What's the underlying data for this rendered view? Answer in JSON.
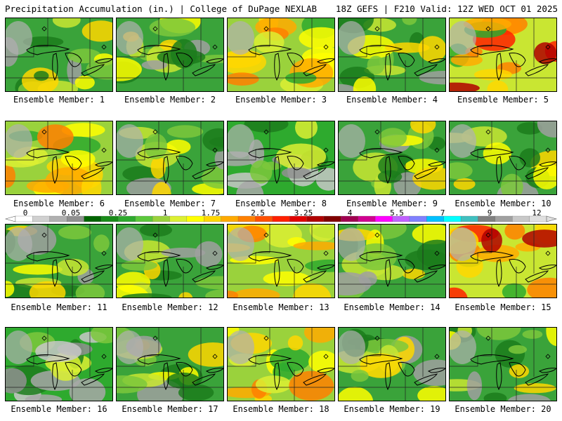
{
  "header": {
    "left": "Precipitation Accumulation (in.) | College of DuPage NEXLAB",
    "right": "18Z GEFS | F210 Valid: 12Z WED OCT 01 2025"
  },
  "members": [
    {
      "label": "Ensemble Member: 1",
      "theme": "green"
    },
    {
      "label": "Ensemble Member: 2",
      "theme": "green"
    },
    {
      "label": "Ensemble Member: 3",
      "theme": "yellow"
    },
    {
      "label": "Ensemble Member: 4",
      "theme": "green"
    },
    {
      "label": "Ensemble Member: 5",
      "theme": "red"
    },
    {
      "label": "Ensemble Member: 6",
      "theme": "yellow"
    },
    {
      "label": "Ensemble Member: 7",
      "theme": "green"
    },
    {
      "label": "Ensemble Member: 8",
      "theme": "gray"
    },
    {
      "label": "Ensemble Member: 9",
      "theme": "green"
    },
    {
      "label": "Ensemble Member: 10",
      "theme": "green"
    },
    {
      "label": "Ensemble Member: 11",
      "theme": "green"
    },
    {
      "label": "Ensemble Member: 12",
      "theme": "green"
    },
    {
      "label": "Ensemble Member: 13",
      "theme": "yellow"
    },
    {
      "label": "Ensemble Member: 14",
      "theme": "green"
    },
    {
      "label": "Ensemble Member: 15",
      "theme": "red"
    },
    {
      "label": "Ensemble Member: 16",
      "theme": "gray"
    },
    {
      "label": "Ensemble Member: 17",
      "theme": "green"
    },
    {
      "label": "Ensemble Member: 18",
      "theme": "yellow"
    },
    {
      "label": "Ensemble Member: 19",
      "theme": "green"
    },
    {
      "label": "Ensemble Member: 20",
      "theme": "green"
    }
  ],
  "legend": {
    "ticks": [
      "0",
      "0.05",
      "0.25",
      "1",
      "1.75",
      "2.5",
      "3.25",
      "4",
      "5.5",
      "7",
      "9",
      "12"
    ],
    "colors": [
      "#ffffff",
      "#d0d0d0",
      "#b0b0b0",
      "#909090",
      "#006400",
      "#1a8c1a",
      "#2eaa2e",
      "#5cc83c",
      "#9ad23c",
      "#dcf032",
      "#ffff00",
      "#ffd700",
      "#ffaa00",
      "#ff8000",
      "#ff5000",
      "#ff2000",
      "#e00000",
      "#b00000",
      "#800000",
      "#a00050",
      "#d00090",
      "#ff00ff",
      "#c060ff",
      "#8080ff",
      "#00c0ff",
      "#00ffff",
      "#40c0c0",
      "#808080",
      "#a0a0a0",
      "#c8c8c8",
      "#e0e0e0"
    ]
  }
}
